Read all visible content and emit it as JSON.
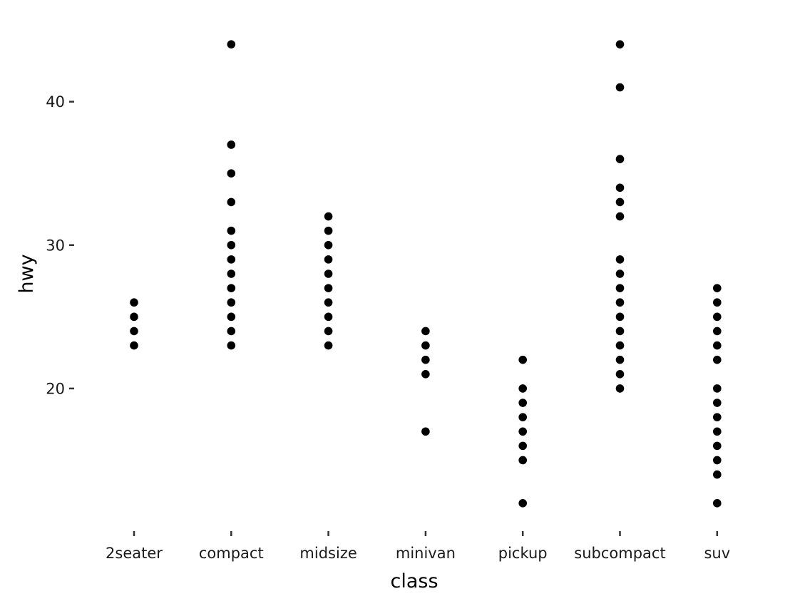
{
  "chart_data": {
    "type": "scatter",
    "xlabel": "class",
    "ylabel": "hwy",
    "categories": [
      "2seater",
      "compact",
      "midsize",
      "minivan",
      "pickup",
      "subcompact",
      "suv"
    ],
    "y_ticks": [
      20,
      30,
      40
    ],
    "ylim": [
      10.4,
      45.6
    ],
    "grid": false,
    "points": [
      {
        "x": "2seater",
        "y": 26
      },
      {
        "x": "2seater",
        "y": 25
      },
      {
        "x": "2seater",
        "y": 24
      },
      {
        "x": "2seater",
        "y": 23
      },
      {
        "x": "compact",
        "y": 44
      },
      {
        "x": "compact",
        "y": 37
      },
      {
        "x": "compact",
        "y": 35
      },
      {
        "x": "compact",
        "y": 33
      },
      {
        "x": "compact",
        "y": 31
      },
      {
        "x": "compact",
        "y": 30
      },
      {
        "x": "compact",
        "y": 29
      },
      {
        "x": "compact",
        "y": 28
      },
      {
        "x": "compact",
        "y": 27
      },
      {
        "x": "compact",
        "y": 26
      },
      {
        "x": "compact",
        "y": 25
      },
      {
        "x": "compact",
        "y": 24
      },
      {
        "x": "compact",
        "y": 23
      },
      {
        "x": "midsize",
        "y": 32
      },
      {
        "x": "midsize",
        "y": 31
      },
      {
        "x": "midsize",
        "y": 30
      },
      {
        "x": "midsize",
        "y": 29
      },
      {
        "x": "midsize",
        "y": 28
      },
      {
        "x": "midsize",
        "y": 27
      },
      {
        "x": "midsize",
        "y": 26
      },
      {
        "x": "midsize",
        "y": 25
      },
      {
        "x": "midsize",
        "y": 24
      },
      {
        "x": "midsize",
        "y": 23
      },
      {
        "x": "minivan",
        "y": 24
      },
      {
        "x": "minivan",
        "y": 23
      },
      {
        "x": "minivan",
        "y": 22
      },
      {
        "x": "minivan",
        "y": 21
      },
      {
        "x": "minivan",
        "y": 17
      },
      {
        "x": "pickup",
        "y": 22
      },
      {
        "x": "pickup",
        "y": 20
      },
      {
        "x": "pickup",
        "y": 19
      },
      {
        "x": "pickup",
        "y": 18
      },
      {
        "x": "pickup",
        "y": 17
      },
      {
        "x": "pickup",
        "y": 16
      },
      {
        "x": "pickup",
        "y": 15
      },
      {
        "x": "pickup",
        "y": 12
      },
      {
        "x": "subcompact",
        "y": 44
      },
      {
        "x": "subcompact",
        "y": 41
      },
      {
        "x": "subcompact",
        "y": 36
      },
      {
        "x": "subcompact",
        "y": 34
      },
      {
        "x": "subcompact",
        "y": 33
      },
      {
        "x": "subcompact",
        "y": 32
      },
      {
        "x": "subcompact",
        "y": 29
      },
      {
        "x": "subcompact",
        "y": 28
      },
      {
        "x": "subcompact",
        "y": 27
      },
      {
        "x": "subcompact",
        "y": 26
      },
      {
        "x": "subcompact",
        "y": 25
      },
      {
        "x": "subcompact",
        "y": 24
      },
      {
        "x": "subcompact",
        "y": 23
      },
      {
        "x": "subcompact",
        "y": 22
      },
      {
        "x": "subcompact",
        "y": 21
      },
      {
        "x": "subcompact",
        "y": 20
      },
      {
        "x": "suv",
        "y": 27
      },
      {
        "x": "suv",
        "y": 26
      },
      {
        "x": "suv",
        "y": 25
      },
      {
        "x": "suv",
        "y": 24
      },
      {
        "x": "suv",
        "y": 23
      },
      {
        "x": "suv",
        "y": 22
      },
      {
        "x": "suv",
        "y": 20
      },
      {
        "x": "suv",
        "y": 19
      },
      {
        "x": "suv",
        "y": 18
      },
      {
        "x": "suv",
        "y": 17
      },
      {
        "x": "suv",
        "y": 16
      },
      {
        "x": "suv",
        "y": 15
      },
      {
        "x": "suv",
        "y": 14
      },
      {
        "x": "suv",
        "y": 12
      }
    ],
    "point_color": "#000000",
    "background": "#ffffff"
  }
}
